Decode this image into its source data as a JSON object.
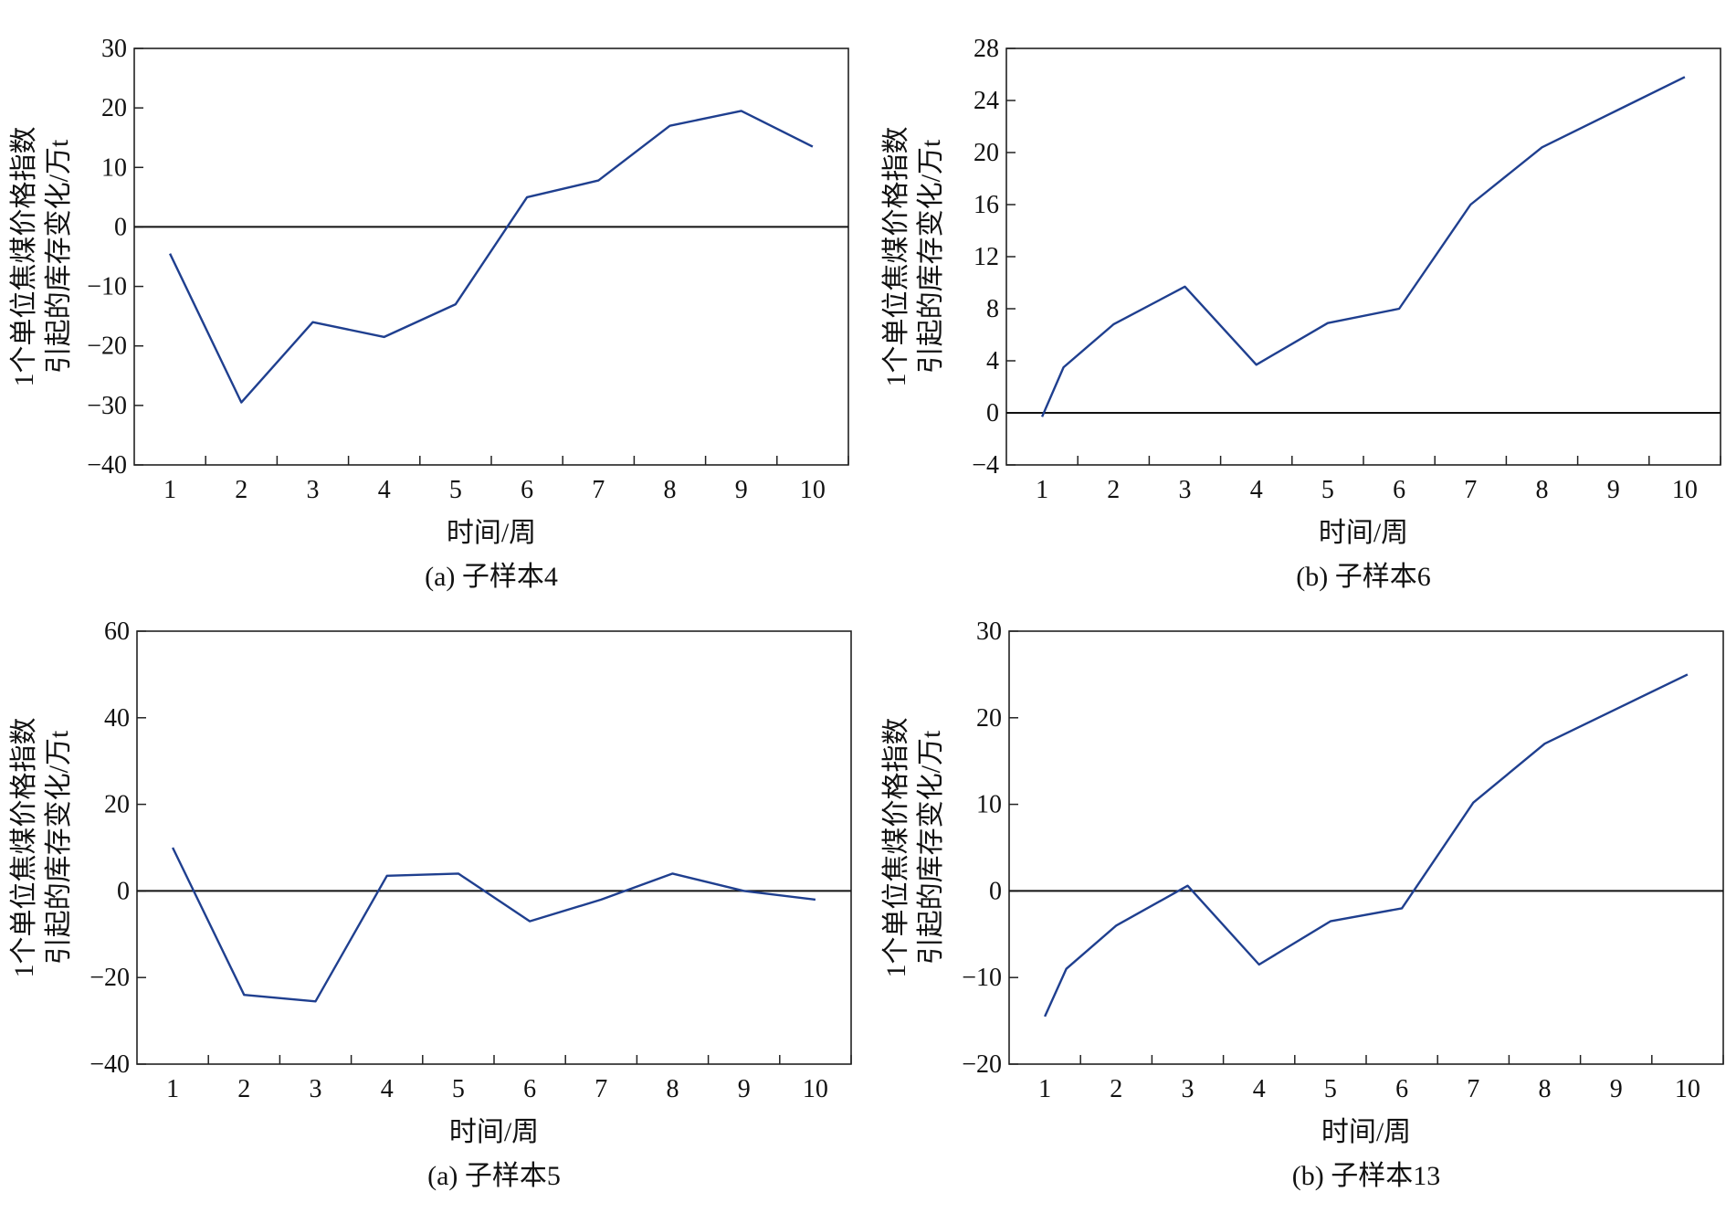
{
  "chart_data": [
    {
      "type": "line",
      "caption": "(a) 子样本4",
      "xlabel": "时间/周",
      "ylabel_lines": [
        "1个单位焦煤价格指数",
        "引起的库存变化/万t"
      ],
      "x": [
        1,
        2,
        3,
        4,
        5,
        6,
        7,
        8,
        9,
        10
      ],
      "x_tick_labels": [
        "1",
        "2",
        "3",
        "4",
        "5",
        "6",
        "7",
        "8",
        "9",
        "10"
      ],
      "series": [
        {
          "values": [
            -4.5,
            -29.5,
            -16,
            -18.5,
            -13,
            5,
            7.8,
            17,
            19.5,
            13.5
          ]
        }
      ],
      "ylim": [
        -40,
        30
      ],
      "y_ticks": [
        30,
        20,
        10,
        0,
        -10,
        -20,
        -30,
        -40
      ],
      "y_tick_labels": [
        "30",
        "20",
        "10",
        "0",
        "−10",
        "−20",
        "−30",
        "−40"
      ],
      "zero_line": true,
      "grid": false,
      "line_color": "#1f3f8f"
    },
    {
      "type": "line",
      "caption": "(b) 子样本6",
      "xlabel": "时间/周",
      "ylabel_lines": [
        "1个单位焦煤价格指数",
        "引起的库存变化/万t"
      ],
      "x": [
        1,
        1.3,
        2,
        3,
        4,
        5,
        6,
        7,
        8,
        10
      ],
      "x_tick_labels": [
        "1",
        "2",
        "3",
        "4",
        "5",
        "6",
        "7",
        "8",
        "9",
        "10"
      ],
      "series": [
        {
          "values": [
            -0.3,
            3.5,
            6.8,
            9.7,
            3.7,
            6.9,
            8,
            16,
            20.4,
            25.8
          ]
        }
      ],
      "ylim": [
        -4,
        28
      ],
      "y_ticks": [
        28,
        24,
        20,
        16,
        12,
        8,
        4,
        0,
        -4
      ],
      "y_tick_labels": [
        "28",
        "24",
        "20",
        "16",
        "12",
        "8",
        "4",
        "0",
        "−4"
      ],
      "zero_line": true,
      "grid": false,
      "line_color": "#1f3f8f"
    },
    {
      "type": "line",
      "caption": "(a) 子样本5",
      "xlabel": "时间/周",
      "ylabel_lines": [
        "1个单位焦煤价格指数",
        "引起的库存变化/万t"
      ],
      "x": [
        1,
        2,
        3,
        4,
        5,
        6,
        7,
        8,
        9,
        10
      ],
      "x_tick_labels": [
        "1",
        "2",
        "3",
        "4",
        "5",
        "6",
        "7",
        "8",
        "9",
        "10"
      ],
      "series": [
        {
          "values": [
            10,
            -24,
            -25.5,
            3.5,
            4,
            -7,
            -2,
            4,
            0,
            -2
          ]
        }
      ],
      "ylim": [
        -40,
        60
      ],
      "y_ticks": [
        60,
        40,
        20,
        0,
        -20,
        -40
      ],
      "y_tick_labels": [
        "60",
        "40",
        "20",
        "0",
        "−20",
        "−40"
      ],
      "zero_line": true,
      "grid": false,
      "line_color": "#1f3f8f"
    },
    {
      "type": "line",
      "caption": "(b) 子样本13",
      "xlabel": "时间/周",
      "ylabel_lines": [
        "1个单位焦煤价格指数",
        "引起的库存变化/万t"
      ],
      "x": [
        1,
        1.3,
        2,
        3,
        4,
        5,
        6,
        7,
        8,
        10
      ],
      "x_tick_labels": [
        "1",
        "2",
        "3",
        "4",
        "5",
        "6",
        "7",
        "8",
        "9",
        "10"
      ],
      "series": [
        {
          "values": [
            -14.5,
            -9,
            -4,
            0.6,
            -8.5,
            -3.5,
            -2,
            10.2,
            17,
            25
          ]
        }
      ],
      "ylim": [
        -20,
        30
      ],
      "y_ticks": [
        30,
        20,
        10,
        0,
        -10,
        -20
      ],
      "y_tick_labels": [
        "30",
        "20",
        "10",
        "0",
        "−10",
        "−20"
      ],
      "zero_line": true,
      "grid": false,
      "line_color": "#1f3f8f"
    }
  ]
}
